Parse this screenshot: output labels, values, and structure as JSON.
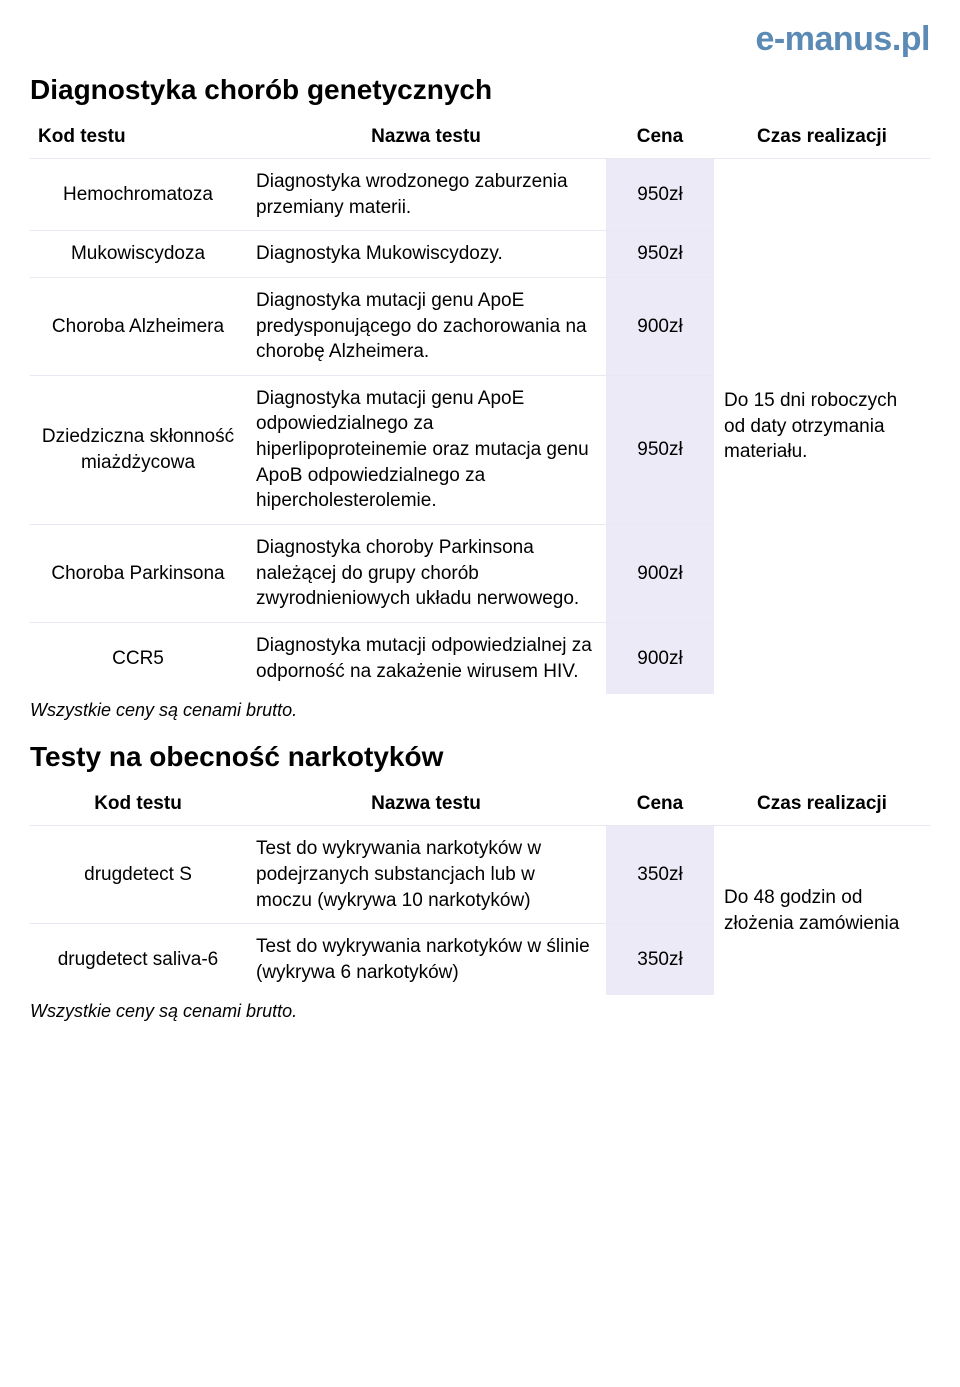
{
  "logo": "e-manus.pl",
  "section1": {
    "title": "Diagnostyka chorób genetycznych",
    "columns": [
      "Kod testu",
      "Nazwa testu",
      "Cena",
      "Czas realizacji"
    ],
    "time_note": "Do 15 dni roboczych od daty otrzymania materiału.",
    "rows": [
      {
        "code": "Hemochromatoza",
        "name": "Diagnostyka wrodzonego zaburzenia przemiany materii.",
        "price": "950zł"
      },
      {
        "code": "Mukowiscydoza",
        "name": "Diagnostyka Mukowiscydozy.",
        "price": "950zł"
      },
      {
        "code": "Choroba Alzheimera",
        "name": "Diagnostyka mutacji genu ApoE  predysponującego do zachorowania na chorobę Alzheimera.",
        "price": "900zł"
      },
      {
        "code": "Dziedziczna skłonność miażdżycowa",
        "name": "Diagnostyka mutacji genu ApoE odpowiedzialnego za hiperlipoproteinemie oraz mutacja genu ApoB odpowiedzialnego za hipercholesterolemie.",
        "price": "950zł"
      },
      {
        "code": "Choroba Parkinsona",
        "name": "Diagnostyka choroby Parkinsona należącej do grupy chorób zwyrodnieniowych układu nerwowego.",
        "price": "900zł"
      },
      {
        "code": "CCR5",
        "name": "Diagnostyka mutacji odpowiedzialnej za odporność na zakażenie wirusem HIV.",
        "price": "900zł"
      }
    ],
    "note": "Wszystkie ceny są cenami brutto."
  },
  "section2": {
    "title": "Testy na obecność narkotyków",
    "columns": [
      "Kod testu",
      "Nazwa testu",
      "Cena",
      "Czas realizacji"
    ],
    "time_note": "Do 48 godzin od złożenia zamówienia",
    "rows": [
      {
        "code": "drugdetect S",
        "name": "Test do wykrywania narkotyków w podejrzanych substancjach lub w moczu (wykrywa 10 narkotyków)",
        "price": "350zł"
      },
      {
        "code": "drugdetect saliva-6",
        "name": "Test do wykrywania narkotyków w ślinie (wykrywa 6 narkotyków)",
        "price": "350zł"
      }
    ],
    "note": "Wszystkie ceny są cenami brutto."
  },
  "colors": {
    "logo": "#5b8ab5",
    "price_bg": "#eceaf6",
    "border": "#e8e8f0",
    "text": "#000000",
    "background": "#ffffff"
  }
}
